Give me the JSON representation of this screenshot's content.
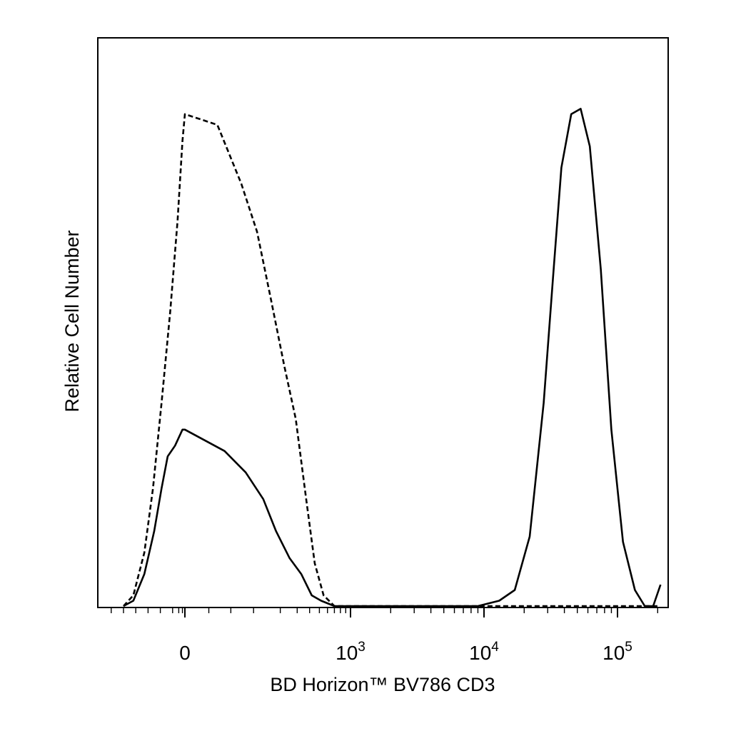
{
  "chart_data": {
    "type": "line",
    "title": "",
    "xlabel": "BD Horizon™ BV786 CD3",
    "ylabel": "Relative Cell Number",
    "x_scale": "biexponential",
    "x_tick_labels": [
      {
        "value": 0,
        "base": "0",
        "exp": ""
      },
      {
        "value": 1000,
        "base": "10",
        "exp": "3"
      },
      {
        "value": 10000,
        "base": "10",
        "exp": "4"
      },
      {
        "value": 100000,
        "base": "10",
        "exp": "5"
      }
    ],
    "y_relative_range": [
      0,
      100
    ],
    "grid": false,
    "legend": "none",
    "colors": {
      "lines": "#000000",
      "frame": "#000000",
      "background": "#ffffff"
    },
    "series": [
      {
        "style": "dashed",
        "points": [
          [
            -500,
            0
          ],
          [
            -420,
            2
          ],
          [
            -330,
            10
          ],
          [
            -260,
            22
          ],
          [
            -190,
            38
          ],
          [
            -120,
            55
          ],
          [
            -60,
            72
          ],
          [
            -20,
            87
          ],
          [
            0,
            92
          ],
          [
            30,
            90
          ],
          [
            70,
            79
          ],
          [
            110,
            70
          ],
          [
            160,
            57
          ],
          [
            220,
            45
          ],
          [
            290,
            35
          ],
          [
            370,
            20
          ],
          [
            450,
            8
          ],
          [
            550,
            2
          ],
          [
            700,
            0
          ],
          [
            1000,
            0
          ],
          [
            10000,
            0
          ],
          [
            100000,
            0
          ],
          [
            200000,
            0
          ]
        ]
      },
      {
        "style": "solid",
        "points": [
          [
            -500,
            0
          ],
          [
            -420,
            1
          ],
          [
            -330,
            6
          ],
          [
            -250,
            14
          ],
          [
            -190,
            22
          ],
          [
            -140,
            28
          ],
          [
            -80,
            30
          ],
          [
            -20,
            33
          ],
          [
            0,
            33
          ],
          [
            40,
            29
          ],
          [
            80,
            25
          ],
          [
            130,
            20
          ],
          [
            180,
            14
          ],
          [
            250,
            9
          ],
          [
            330,
            6
          ],
          [
            420,
            2
          ],
          [
            520,
            1
          ],
          [
            700,
            0
          ],
          [
            1000,
            0
          ],
          [
            9000,
            0
          ],
          [
            13000,
            1
          ],
          [
            17000,
            3
          ],
          [
            22000,
            13
          ],
          [
            28000,
            38
          ],
          [
            33000,
            62
          ],
          [
            38000,
            82
          ],
          [
            45000,
            92
          ],
          [
            53000,
            93
          ],
          [
            62000,
            86
          ],
          [
            75000,
            63
          ],
          [
            90000,
            33
          ],
          [
            110000,
            12
          ],
          [
            135000,
            3
          ],
          [
            160000,
            0
          ],
          [
            185000,
            0
          ],
          [
            210000,
            4
          ]
        ]
      }
    ]
  }
}
